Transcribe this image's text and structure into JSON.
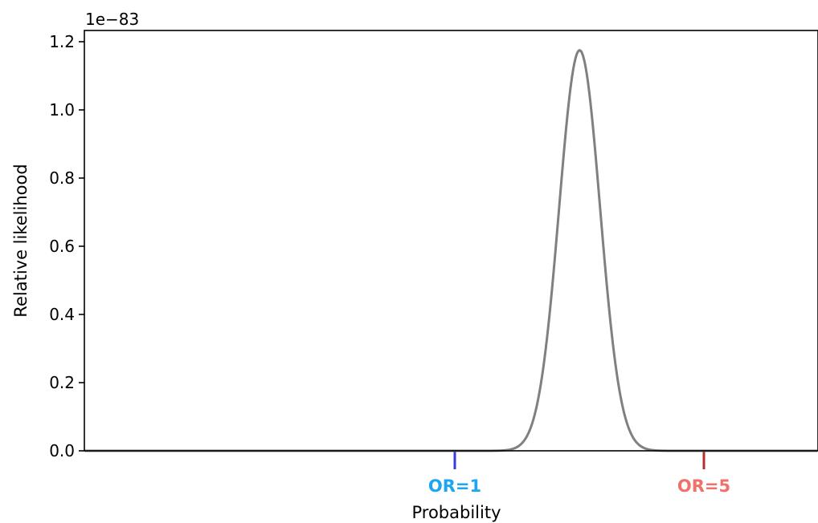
{
  "chart_data": {
    "type": "line",
    "title": "",
    "xlabel": "Probability",
    "ylabel": "Relative likelihood",
    "y_offset_text": "1e−83",
    "ylim": [
      0,
      1.24
    ],
    "xlim": [
      0,
      1
    ],
    "yticks": [
      {
        "value": 0.0,
        "label": "0.0"
      },
      {
        "value": 0.2,
        "label": "0.2"
      },
      {
        "value": 0.4,
        "label": "0.4"
      },
      {
        "value": 0.6,
        "label": "0.6"
      },
      {
        "value": 0.8,
        "label": "0.8"
      },
      {
        "value": 1.0,
        "label": "1.0"
      },
      {
        "value": 1.2,
        "label": "1.2"
      }
    ],
    "x_markers": [
      {
        "x": 0.5,
        "label": "OR=1",
        "tick_color": "#3b3bdc",
        "label_color": "#1aa6f0"
      },
      {
        "x": 0.8333,
        "label": "OR=5",
        "tick_color": "#b03030",
        "label_color": "#f0706a"
      }
    ],
    "series": [
      {
        "color": "#808080",
        "peak_x": 0.667,
        "peak_y": 1.175,
        "sd": 0.0274
      }
    ],
    "grid": false
  }
}
